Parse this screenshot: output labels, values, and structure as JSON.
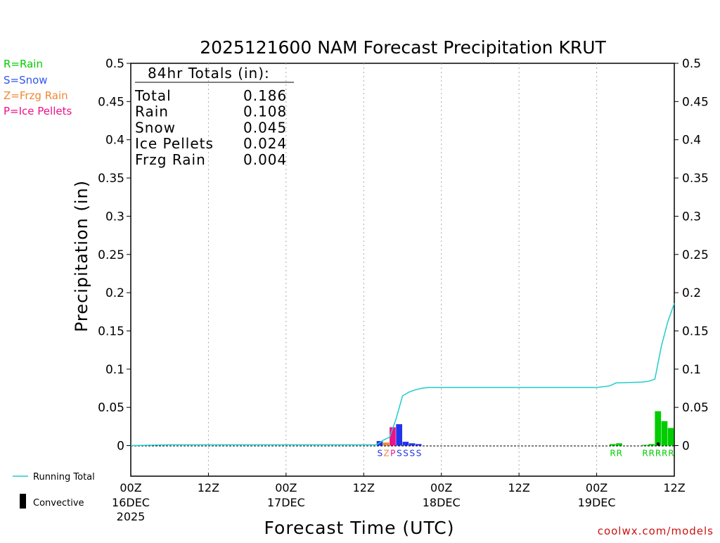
{
  "title": "2025121600 NAM Forecast Precipitation KRUT",
  "footer": "coolwx.com/models",
  "legend_types": [
    {
      "label": "R=Rain",
      "color": "#00cc00"
    },
    {
      "label": "S=Snow",
      "color": "#3355ee"
    },
    {
      "label": "Z=Frzg Rain",
      "color": "#ee8833"
    },
    {
      "label": "P=Ice Pellets",
      "color": "#ee1188"
    }
  ],
  "legend_lines": {
    "running_total": "Running Total",
    "convective": "Convective"
  },
  "totals": {
    "header": "84hr Totals (in):",
    "rows": [
      {
        "label": "Total",
        "value": "0.186"
      },
      {
        "label": "Rain",
        "value": "0.108"
      },
      {
        "label": "Snow",
        "value": "0.045"
      },
      {
        "label": "Ice Pellets",
        "value": "0.024"
      },
      {
        "label": "Frzg Rain",
        "value": "0.004"
      }
    ]
  },
  "colors": {
    "rain": "#00cc00",
    "snow": "#2233ee",
    "frzg": "#ee8833",
    "pellets": "#ee1188",
    "running_total": "#22cccc",
    "convective": "#000000"
  },
  "chart_data": {
    "type": "bar",
    "ylabel": "Precipitation (in)",
    "xlabel": "Forecast Time (UTC)",
    "xlim": [
      0,
      84
    ],
    "ylim": [
      -0.04,
      0.5
    ],
    "yticks": [
      0,
      0.05,
      0.1,
      0.15,
      0.2,
      0.25,
      0.3,
      0.35,
      0.4,
      0.45,
      0.5
    ],
    "ytick_labels": [
      "0",
      "0.05",
      "0.1",
      "0.15",
      "0.2",
      "0.25",
      "0.3",
      "0.35",
      "0.4",
      "0.45",
      "0.5"
    ],
    "xticks": [
      {
        "x": 0,
        "label": "00Z",
        "sub": "16DEC",
        "sub2": "2025"
      },
      {
        "x": 12,
        "label": "12Z"
      },
      {
        "x": 24,
        "label": "00Z",
        "sub": "17DEC"
      },
      {
        "x": 36,
        "label": "12Z"
      },
      {
        "x": 48,
        "label": "00Z",
        "sub": "18DEC"
      },
      {
        "x": 60,
        "label": "12Z"
      },
      {
        "x": 72,
        "label": "00Z",
        "sub": "19DEC"
      },
      {
        "x": 84,
        "label": "12Z"
      }
    ],
    "bars": [
      {
        "x": 39,
        "value": 0.006,
        "type": "snow",
        "label": "S"
      },
      {
        "x": 40,
        "value": 0.004,
        "type": "frzg",
        "label": "Z"
      },
      {
        "x": 41,
        "value": 0.024,
        "type": "pellets",
        "label": "P"
      },
      {
        "x": 42,
        "value": 0.028,
        "type": "snow",
        "label": "S"
      },
      {
        "x": 43,
        "value": 0.005,
        "type": "snow",
        "label": "S"
      },
      {
        "x": 44,
        "value": 0.003,
        "type": "snow",
        "label": "S"
      },
      {
        "x": 45,
        "value": 0.002,
        "type": "snow",
        "label": "S"
      },
      {
        "x": 75,
        "value": 0.002,
        "type": "rain",
        "label": "R"
      },
      {
        "x": 76,
        "value": 0.003,
        "type": "rain",
        "label": "R"
      },
      {
        "x": 80,
        "value": 0.001,
        "type": "rain",
        "label": "R"
      },
      {
        "x": 81,
        "value": 0.002,
        "type": "rain",
        "label": "R"
      },
      {
        "x": 82,
        "value": 0.045,
        "type": "rain",
        "label": "R"
      },
      {
        "x": 83,
        "value": 0.032,
        "type": "rain",
        "label": "R"
      },
      {
        "x": 84,
        "value": 0.023,
        "type": "rain",
        "label": "R"
      }
    ],
    "convective": [
      {
        "x": 82,
        "value": 0.004
      }
    ],
    "running_total": {
      "x": [
        0,
        6,
        38,
        39,
        40,
        41,
        42,
        43,
        44,
        45,
        46,
        47,
        48,
        49,
        72,
        74,
        75,
        79,
        80,
        81,
        82,
        83,
        84
      ],
      "y": [
        0,
        0.001,
        0.001,
        0.007,
        0.011,
        0.035,
        0.065,
        0.07,
        0.073,
        0.075,
        0.076,
        0.076,
        0.076,
        0.076,
        0.076,
        0.078,
        0.082,
        0.083,
        0.084,
        0.087,
        0.13,
        0.162,
        0.186
      ]
    }
  }
}
